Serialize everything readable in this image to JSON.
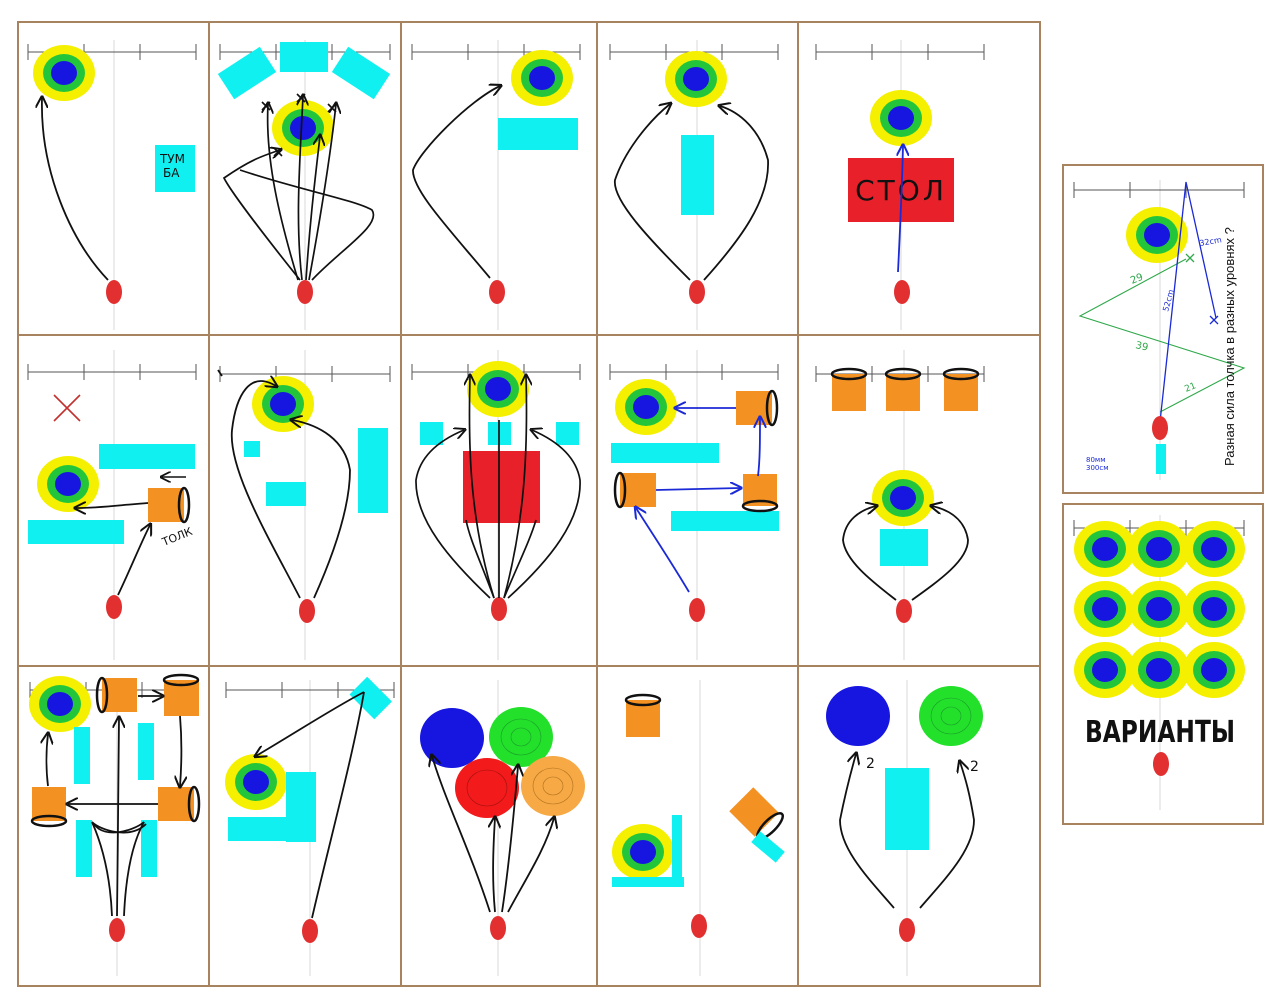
{
  "colors": {
    "panel_border": "#a7835f",
    "ring_outer": "#f5f000",
    "ring_mid": "#23c63a",
    "ring_inner": "#1616e0",
    "cyan_block": "#11f0f0",
    "orange_block": "#f39123",
    "red_table": "#e8202a",
    "puck": "#e23030",
    "ink": "#111111",
    "pen_blue": "#1b2ad6",
    "pen_green": "#2fa84a",
    "x_mark": "#c33030"
  },
  "labels": {
    "tumba": "ТУМ\nБА",
    "stol": "СТОЛ",
    "tolk": "ТОЛК",
    "variants": "ВАРИАНТЫ",
    "side_title": "Разная сила толчка в разных уровнях ?",
    "num_two_left": "2",
    "num_two_right": "2"
  },
  "measurements": {
    "d1": "32cm",
    "d2": "52cm",
    "d3": "29",
    "d4": "39",
    "d5": "21",
    "note": "80мм\n300см"
  }
}
